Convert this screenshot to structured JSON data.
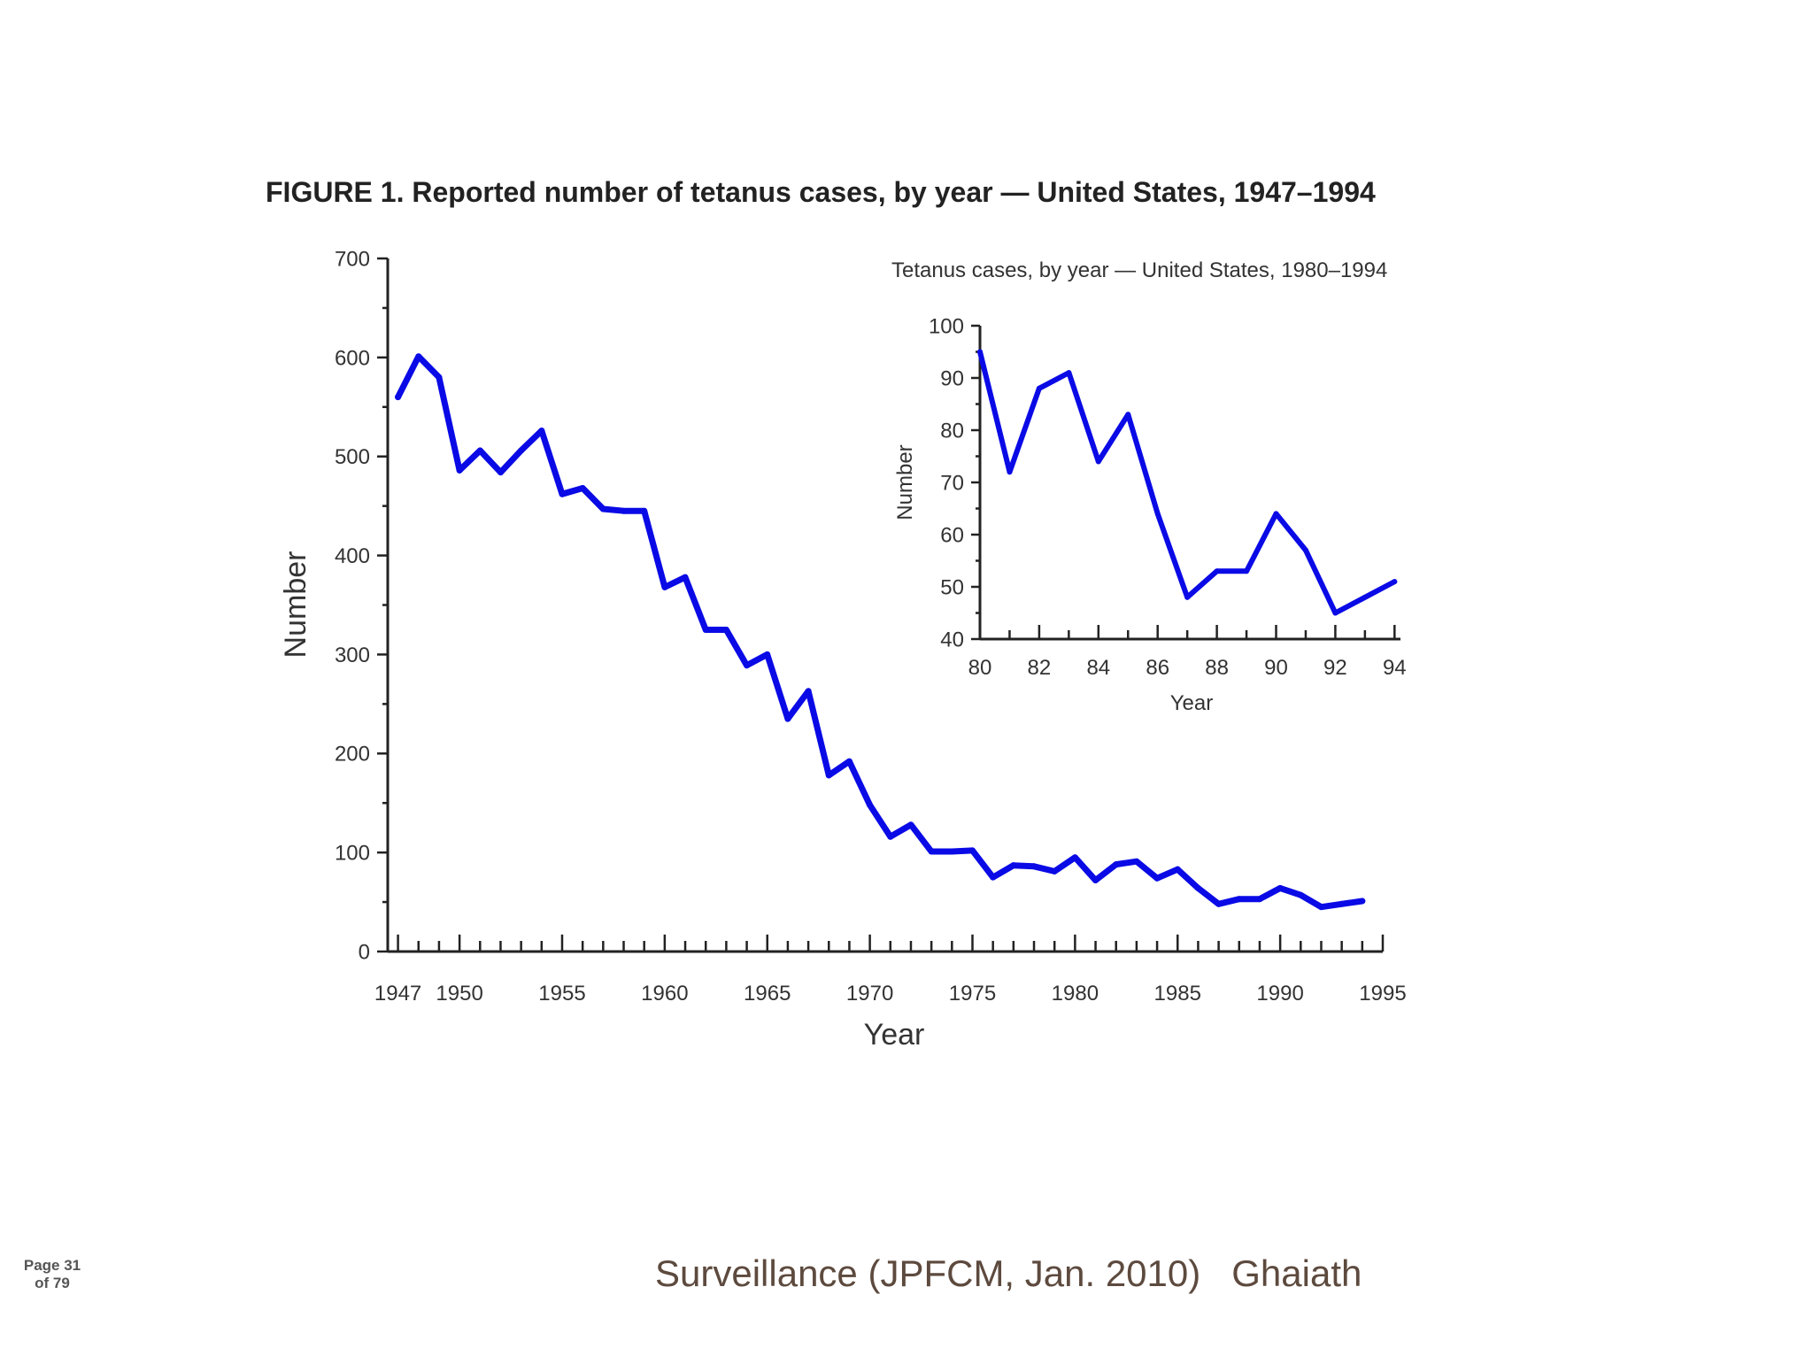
{
  "figure_title": "FIGURE 1. Reported number of tetanus cases, by year — United States, 1947–1994",
  "footer": "Surveillance (JPFCM, Jan. 2010)   Ghaiath",
  "page": {
    "line1": "Page 31",
    "line2": "of 79"
  },
  "colors": {
    "line": "#0a0ae6",
    "axis": "#222222",
    "text": "#333333",
    "footer": "#5d4a3e"
  },
  "chart_data": [
    {
      "type": "line",
      "title": "FIGURE 1. Reported number of tetanus cases, by year — United States, 1947–1994",
      "xlabel": "Year",
      "ylabel": "Number",
      "xlim": [
        1946.5,
        1995
      ],
      "ylim": [
        0,
        700
      ],
      "xticks": [
        1947,
        1950,
        1955,
        1960,
        1965,
        1970,
        1975,
        1980,
        1985,
        1990,
        1995
      ],
      "xtick_labels": [
        "1947",
        "1950",
        "1955",
        "1960",
        "1965",
        "1970",
        "1975",
        "1980",
        "1985",
        "1990",
        "1995"
      ],
      "yticks": [
        0,
        100,
        200,
        300,
        400,
        500,
        600,
        700
      ],
      "ytick_labels": [
        "0",
        "100",
        "200",
        "300",
        "400",
        "500",
        "600",
        "700"
      ],
      "series": [
        {
          "x": [
            1947,
            1948,
            1949,
            1950,
            1951,
            1952,
            1953,
            1954,
            1955,
            1956,
            1957,
            1958,
            1959,
            1960,
            1961,
            1962,
            1963,
            1964,
            1965,
            1966,
            1967,
            1968,
            1969,
            1970,
            1971,
            1972,
            1973,
            1974,
            1975,
            1976,
            1977,
            1978,
            1979,
            1980,
            1981,
            1982,
            1983,
            1984,
            1985,
            1986,
            1987,
            1988,
            1989,
            1990,
            1991,
            1992,
            1993,
            1994
          ],
          "values": [
            560,
            601,
            580,
            486,
            506,
            484,
            506,
            526,
            462,
            468,
            447,
            445,
            445,
            368,
            378,
            325,
            325,
            289,
            300,
            235,
            263,
            178,
            192,
            148,
            116,
            128,
            101,
            101,
            102,
            75,
            87,
            86,
            81,
            95,
            72,
            88,
            91,
            74,
            83,
            64,
            48,
            53,
            53,
            64,
            57,
            45,
            48,
            51
          ]
        }
      ]
    },
    {
      "type": "line",
      "title": "Tetanus cases, by year — United States, 1980–1994",
      "xlabel": "Year",
      "ylabel": "Number",
      "xlim": [
        1980,
        1994.2
      ],
      "ylim": [
        40,
        100
      ],
      "xticks": [
        1980,
        1982,
        1984,
        1986,
        1988,
        1990,
        1992,
        1994
      ],
      "xtick_labels": [
        "80",
        "82",
        "84",
        "86",
        "88",
        "90",
        "92",
        "94"
      ],
      "yticks": [
        40,
        50,
        60,
        70,
        80,
        90,
        100
      ],
      "ytick_labels": [
        "40",
        "50",
        "60",
        "70",
        "80",
        "90",
        "100"
      ],
      "series": [
        {
          "x": [
            1980,
            1981,
            1982,
            1983,
            1984,
            1985,
            1986,
            1987,
            1988,
            1989,
            1990,
            1991,
            1992,
            1993,
            1994
          ],
          "values": [
            95,
            72,
            88,
            91,
            74,
            83,
            64,
            48,
            53,
            53,
            64,
            57,
            45,
            48,
            51
          ]
        }
      ]
    }
  ]
}
